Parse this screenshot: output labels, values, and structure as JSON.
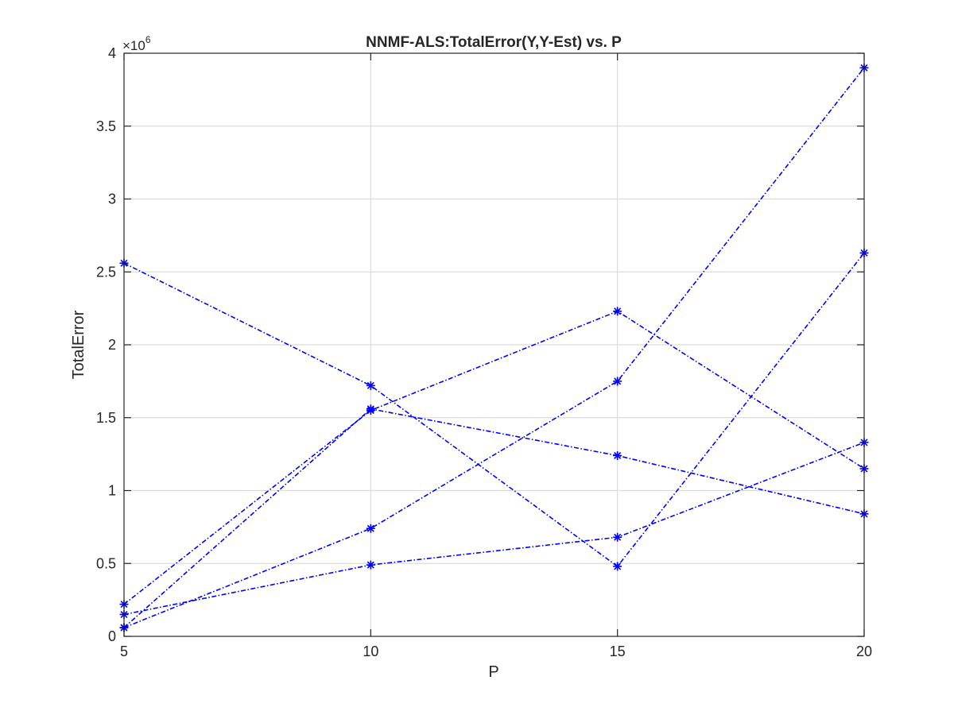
{
  "chart_data": {
    "type": "line",
    "title": "NNMF-ALS:TotalError(Y,Y-Est) vs. P",
    "xlabel": "P",
    "ylabel": "TotalError",
    "exponent_label": "×10",
    "exponent_power": "6",
    "xlim": [
      5,
      20
    ],
    "ylim": [
      0,
      4000000
    ],
    "x": [
      5,
      10,
      15,
      20
    ],
    "xticks": [
      5,
      10,
      15,
      20
    ],
    "xtick_labels": [
      "5",
      "10",
      "15",
      "20"
    ],
    "yticks": [
      0,
      500000,
      1000000,
      1500000,
      2000000,
      2500000,
      3000000,
      3500000,
      4000000
    ],
    "ytick_labels": [
      "0",
      "0.5",
      "1",
      "1.5",
      "2",
      "2.5",
      "3",
      "3.5",
      "4"
    ],
    "grid": true,
    "line_style": "dash-dot",
    "marker": "asterisk",
    "series_color": "#0000ff",
    "series": [
      {
        "values": [
          2560000,
          1720000,
          480000,
          2630000
        ]
      },
      {
        "values": [
          220000,
          1550000,
          2230000,
          1150000
        ]
      },
      {
        "values": [
          60000,
          1560000,
          1240000,
          840000
        ]
      },
      {
        "values": [
          60000,
          740000,
          1750000,
          3900000
        ]
      },
      {
        "values": [
          150000,
          490000,
          680000,
          1330000
        ]
      }
    ]
  }
}
